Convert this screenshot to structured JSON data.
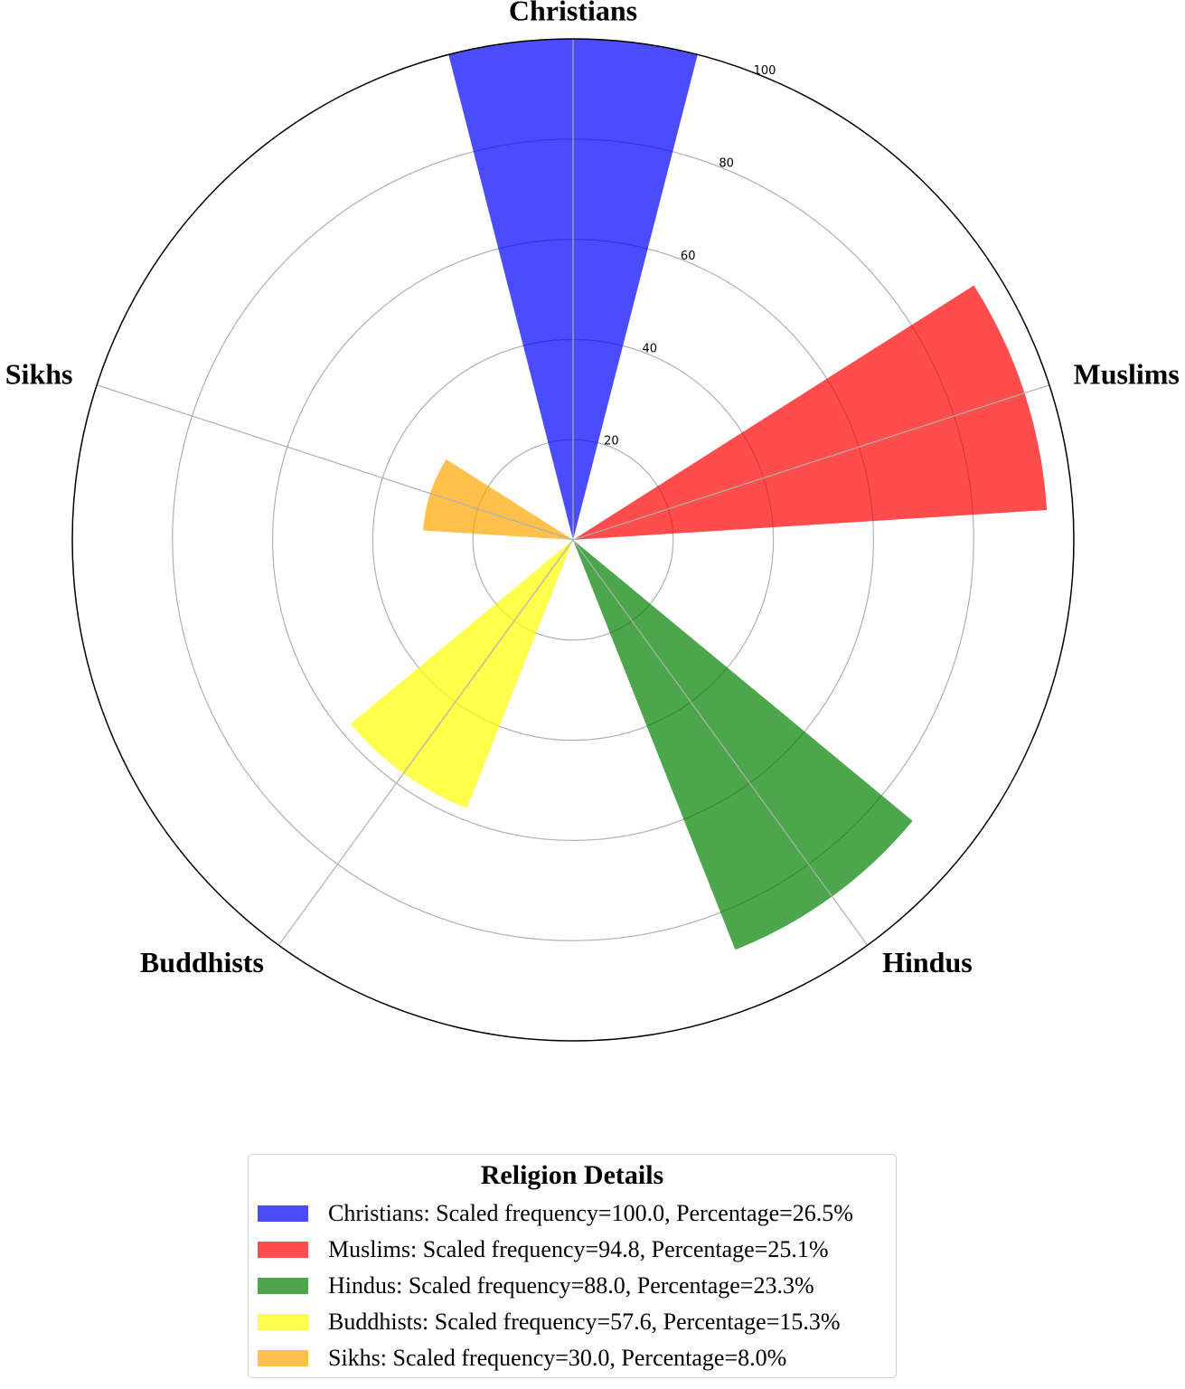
{
  "chart_data": {
    "type": "polar-bar",
    "categories": [
      "Christians",
      "Muslims",
      "Hindus",
      "Buddhists",
      "Sikhs"
    ],
    "values": [
      100.0,
      94.8,
      88.0,
      57.6,
      30.0
    ],
    "colors": [
      "#0000ff",
      "#ff0000",
      "#008000",
      "#ffff00",
      "#ffa500"
    ],
    "radial_ticks": [
      "20",
      "40",
      "60",
      "80",
      "100"
    ],
    "rlim": [
      0,
      100
    ],
    "grid": true,
    "legend": {
      "title": "Religion Details",
      "placement": "bottom-center",
      "entries": [
        "Christians: Scaled frequency=100.0, Percentage=26.5%",
        "Muslims: Scaled frequency=94.8, Percentage=25.1%",
        "Hindus: Scaled frequency=88.0, Percentage=23.3%",
        "Buddhists: Scaled frequency=57.6, Percentage=15.3%",
        "Sikhs: Scaled frequency=30.0, Percentage=8.0%"
      ]
    }
  }
}
